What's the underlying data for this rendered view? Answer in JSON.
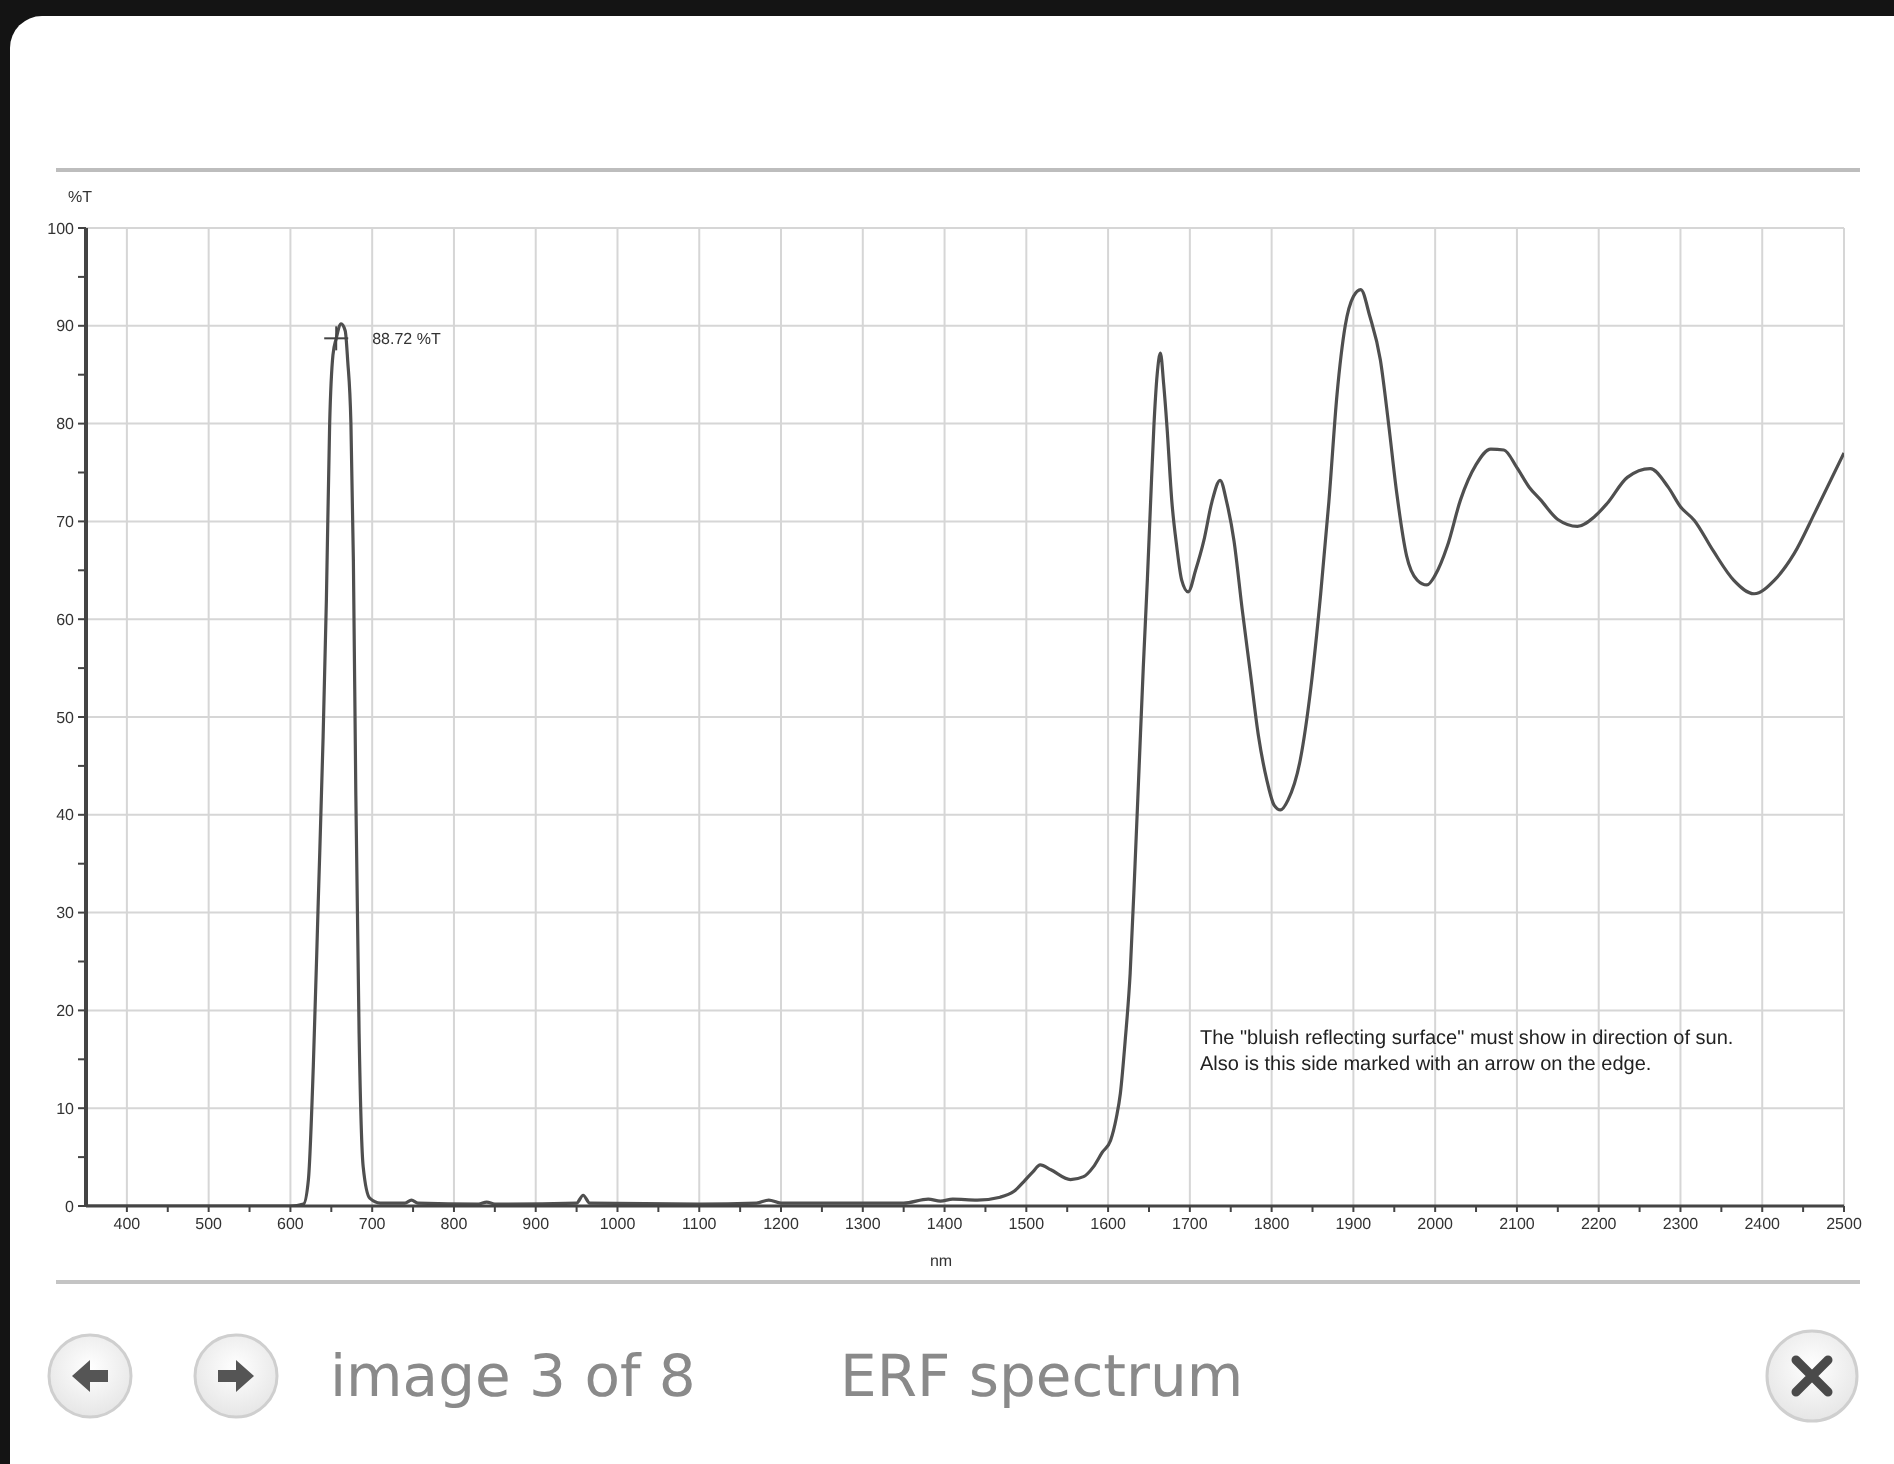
{
  "chart_data": {
    "type": "line",
    "title": "ERF spectrum",
    "xlabel": "nm",
    "ylabel": "%T",
    "x": [
      350,
      600,
      616,
      622,
      628,
      634,
      640,
      644,
      648,
      652,
      656,
      662,
      667,
      670,
      674,
      677,
      680,
      684,
      689,
      697,
      710,
      740,
      748,
      756,
      830,
      840,
      850,
      950,
      958,
      966,
      1100,
      1170,
      1185,
      1200,
      1350,
      1380,
      1395,
      1410,
      1440,
      1468,
      1485,
      1497,
      1508,
      1517,
      1530,
      1554,
      1570,
      1582,
      1593,
      1603,
      1610,
      1615,
      1621,
      1627,
      1633,
      1638,
      1643,
      1648,
      1652,
      1656,
      1660,
      1664,
      1668,
      1672,
      1678,
      1684,
      1690,
      1698,
      1707,
      1717,
      1727,
      1737,
      1745,
      1754,
      1764,
      1774,
      1784,
      1794,
      1803,
      1811,
      1820,
      1835,
      1848,
      1860,
      1870,
      1880,
      1890,
      1900,
      1909,
      1920,
      1933,
      1943,
      1953,
      1965,
      1978,
      1990,
      2000,
      2015,
      2031,
      2050,
      2068,
      2084,
      2100,
      2115,
      2129,
      2150,
      2174,
      2195,
      2210,
      2235,
      2263,
      2285,
      2300,
      2317,
      2340,
      2365,
      2390,
      2415,
      2439,
      2465,
      2500
    ],
    "values": [
      0,
      0,
      0.2,
      2.7,
      14.3,
      31,
      48,
      62,
      80,
      87,
      88.7,
      90.2,
      89.5,
      86.5,
      80,
      66,
      42,
      17.6,
      4,
      0.8,
      0.3,
      0.3,
      0.6,
      0.3,
      0.2,
      0.4,
      0.2,
      0.3,
      1.1,
      0.3,
      0.2,
      0.3,
      0.6,
      0.3,
      0.3,
      0.7,
      0.5,
      0.7,
      0.6,
      0.9,
      1.5,
      2.5,
      3.5,
      4.2,
      3.7,
      2.7,
      3,
      4,
      5.5,
      6.7,
      9,
      11.5,
      17,
      23.8,
      35,
      45,
      55,
      64,
      72,
      79.7,
      85,
      87.2,
      84,
      79.7,
      72,
      67.4,
      64,
      62.8,
      65,
      68,
      72,
      74.2,
      72,
      68,
      61,
      54.5,
      48,
      43.6,
      41,
      40.5,
      41.5,
      45.6,
      53,
      62.6,
      72,
      83,
      90,
      93,
      93.7,
      91,
      86.5,
      80,
      72.9,
      66.5,
      64,
      63.5,
      64.5,
      67.5,
      72.2,
      75.8,
      77.4,
      77.3,
      75.5,
      73.5,
      72.2,
      70.2,
      69.5,
      70.5,
      71.8,
      74.5,
      75.4,
      73.5,
      71.5,
      70.1,
      67,
      64,
      62.6,
      64,
      66.7,
      71,
      77
    ],
    "color": "#4f4f4f",
    "xlim": [
      350,
      2500
    ],
    "xticks": [
      400,
      {
        "value": 450,
        "label": null
      },
      500,
      {
        "value": 550,
        "label": null
      },
      600,
      {
        "value": 650,
        "label": null
      },
      700,
      {
        "value": 750,
        "label": null
      },
      800,
      {
        "value": 850,
        "label": null
      },
      900,
      {
        "value": 950,
        "label": null
      },
      1000,
      {
        "value": 1050,
        "label": null
      },
      1100,
      {
        "value": 1150,
        "label": null
      },
      1200,
      {
        "value": 1250,
        "label": null
      },
      1300,
      {
        "value": 1350,
        "label": null
      },
      1400,
      {
        "value": 1450,
        "label": null
      },
      1500,
      {
        "value": 1550,
        "label": null
      },
      1600,
      {
        "value": 1650,
        "label": null
      },
      1700,
      {
        "value": 1750,
        "label": null
      },
      1800,
      {
        "value": 1850,
        "label": null
      },
      1900,
      {
        "value": 1950,
        "label": null
      },
      2000,
      {
        "value": 2050,
        "label": null
      },
      2100,
      {
        "value": 2150,
        "label": null
      },
      2200,
      {
        "value": 2250,
        "label": null
      },
      2300,
      {
        "value": 2350,
        "label": null
      },
      2400,
      {
        "value": 2450,
        "label": null
      },
      2500
    ],
    "ylim": [
      0,
      100
    ],
    "yticks": [
      0,
      {
        "value": 5,
        "label": null
      },
      10,
      {
        "value": 15,
        "label": null
      },
      20,
      {
        "value": 25,
        "label": null
      },
      30,
      {
        "value": 35,
        "label": null
      },
      40,
      {
        "value": 45,
        "label": null
      },
      50,
      {
        "value": 55,
        "label": null
      },
      60,
      {
        "value": 65,
        "label": null
      },
      70,
      {
        "value": 75,
        "label": null
      },
      80,
      {
        "value": 85,
        "label": null
      },
      90,
      {
        "value": 95,
        "label": null
      },
      100
    ],
    "grid": true,
    "annotations": [
      {
        "text": "88.72 %T",
        "x": 656,
        "y": 88.72
      },
      "The \"bluish reflecting surface\" must show in direction of sun.\nAlso is this side marked with an arrow on the edge.",
      "image 3 of 8"
    ]
  }
}
